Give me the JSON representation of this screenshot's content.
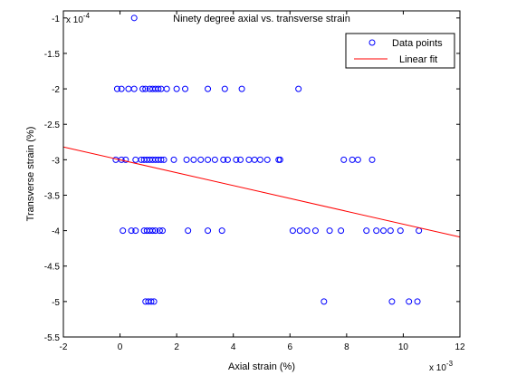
{
  "chart_data": {
    "type": "scatter",
    "title": "Ninety degree axial vs. transverse strain",
    "xlabel": "Axial strain (%)",
    "ylabel": "Transverse strain (%)",
    "x_multiplier": "x 10",
    "x_exponent": "-3",
    "y_multiplier": "x 10",
    "y_exponent": "-4",
    "xlim": [
      -2,
      12
    ],
    "ylim": [
      -5.5,
      -0.9
    ],
    "xticks": [
      -2,
      0,
      2,
      4,
      6,
      8,
      10,
      12
    ],
    "xtick_labels": [
      "-2",
      "0",
      "2",
      "4",
      "6",
      "8",
      "10",
      "12"
    ],
    "yticks": [
      -5.5,
      -5,
      -4.5,
      -4,
      -3.5,
      -3,
      -2.5,
      -2,
      -1.5,
      -1
    ],
    "ytick_labels": [
      "-5.5",
      "-5",
      "-4.5",
      "-4",
      "-3.5",
      "-3",
      "-2.5",
      "-2",
      "-1.5",
      "-1"
    ],
    "grid": false,
    "legend_position": "top-right",
    "series": [
      {
        "name": "Data points",
        "kind": "scatter",
        "marker": "circle",
        "color": "#0000ff",
        "points": [
          [
            0.5,
            -1.0
          ],
          [
            -0.1,
            -2.0
          ],
          [
            0.05,
            -2.0
          ],
          [
            0.3,
            -2.0
          ],
          [
            0.5,
            -2.0
          ],
          [
            0.8,
            -2.0
          ],
          [
            0.9,
            -2.0
          ],
          [
            1.05,
            -2.0
          ],
          [
            1.15,
            -2.0
          ],
          [
            1.25,
            -2.0
          ],
          [
            1.35,
            -2.0
          ],
          [
            1.45,
            -2.0
          ],
          [
            1.65,
            -2.0
          ],
          [
            2.0,
            -2.0
          ],
          [
            2.3,
            -2.0
          ],
          [
            3.1,
            -2.0
          ],
          [
            3.7,
            -2.0
          ],
          [
            4.3,
            -2.0
          ],
          [
            6.3,
            -2.0
          ],
          [
            -0.15,
            -3.0
          ],
          [
            0.05,
            -3.0
          ],
          [
            0.2,
            -3.0
          ],
          [
            0.55,
            -3.0
          ],
          [
            0.75,
            -3.0
          ],
          [
            0.85,
            -3.0
          ],
          [
            0.95,
            -3.0
          ],
          [
            1.05,
            -3.0
          ],
          [
            1.15,
            -3.0
          ],
          [
            1.25,
            -3.0
          ],
          [
            1.35,
            -3.0
          ],
          [
            1.45,
            -3.0
          ],
          [
            1.55,
            -3.0
          ],
          [
            1.9,
            -3.0
          ],
          [
            2.35,
            -3.0
          ],
          [
            2.6,
            -3.0
          ],
          [
            2.85,
            -3.0
          ],
          [
            3.1,
            -3.0
          ],
          [
            3.35,
            -3.0
          ],
          [
            3.65,
            -3.0
          ],
          [
            3.8,
            -3.0
          ],
          [
            4.1,
            -3.0
          ],
          [
            4.25,
            -3.0
          ],
          [
            4.55,
            -3.0
          ],
          [
            4.75,
            -3.0
          ],
          [
            4.95,
            -3.0
          ],
          [
            5.2,
            -3.0
          ],
          [
            5.6,
            -3.0
          ],
          [
            5.65,
            -3.0
          ],
          [
            7.9,
            -3.0
          ],
          [
            8.2,
            -3.0
          ],
          [
            8.4,
            -3.0
          ],
          [
            8.9,
            -3.0
          ],
          [
            0.1,
            -4.0
          ],
          [
            0.4,
            -4.0
          ],
          [
            0.55,
            -4.0
          ],
          [
            0.85,
            -4.0
          ],
          [
            0.95,
            -4.0
          ],
          [
            1.05,
            -4.0
          ],
          [
            1.15,
            -4.0
          ],
          [
            1.25,
            -4.0
          ],
          [
            1.4,
            -4.0
          ],
          [
            1.5,
            -4.0
          ],
          [
            2.4,
            -4.0
          ],
          [
            3.1,
            -4.0
          ],
          [
            3.6,
            -4.0
          ],
          [
            6.1,
            -4.0
          ],
          [
            6.35,
            -4.0
          ],
          [
            6.6,
            -4.0
          ],
          [
            6.9,
            -4.0
          ],
          [
            7.4,
            -4.0
          ],
          [
            7.8,
            -4.0
          ],
          [
            8.7,
            -4.0
          ],
          [
            9.05,
            -4.0
          ],
          [
            9.3,
            -4.0
          ],
          [
            9.55,
            -4.0
          ],
          [
            9.9,
            -4.0
          ],
          [
            10.55,
            -4.0
          ],
          [
            0.9,
            -5.0
          ],
          [
            1.0,
            -5.0
          ],
          [
            1.1,
            -5.0
          ],
          [
            1.2,
            -5.0
          ],
          [
            7.2,
            -5.0
          ],
          [
            9.6,
            -5.0
          ],
          [
            10.2,
            -5.0
          ],
          [
            10.5,
            -5.0
          ]
        ]
      },
      {
        "name": "Linear fit",
        "kind": "line",
        "color": "#ff0000",
        "points": [
          [
            -2,
            -2.82
          ],
          [
            12,
            -4.09
          ]
        ]
      }
    ]
  }
}
